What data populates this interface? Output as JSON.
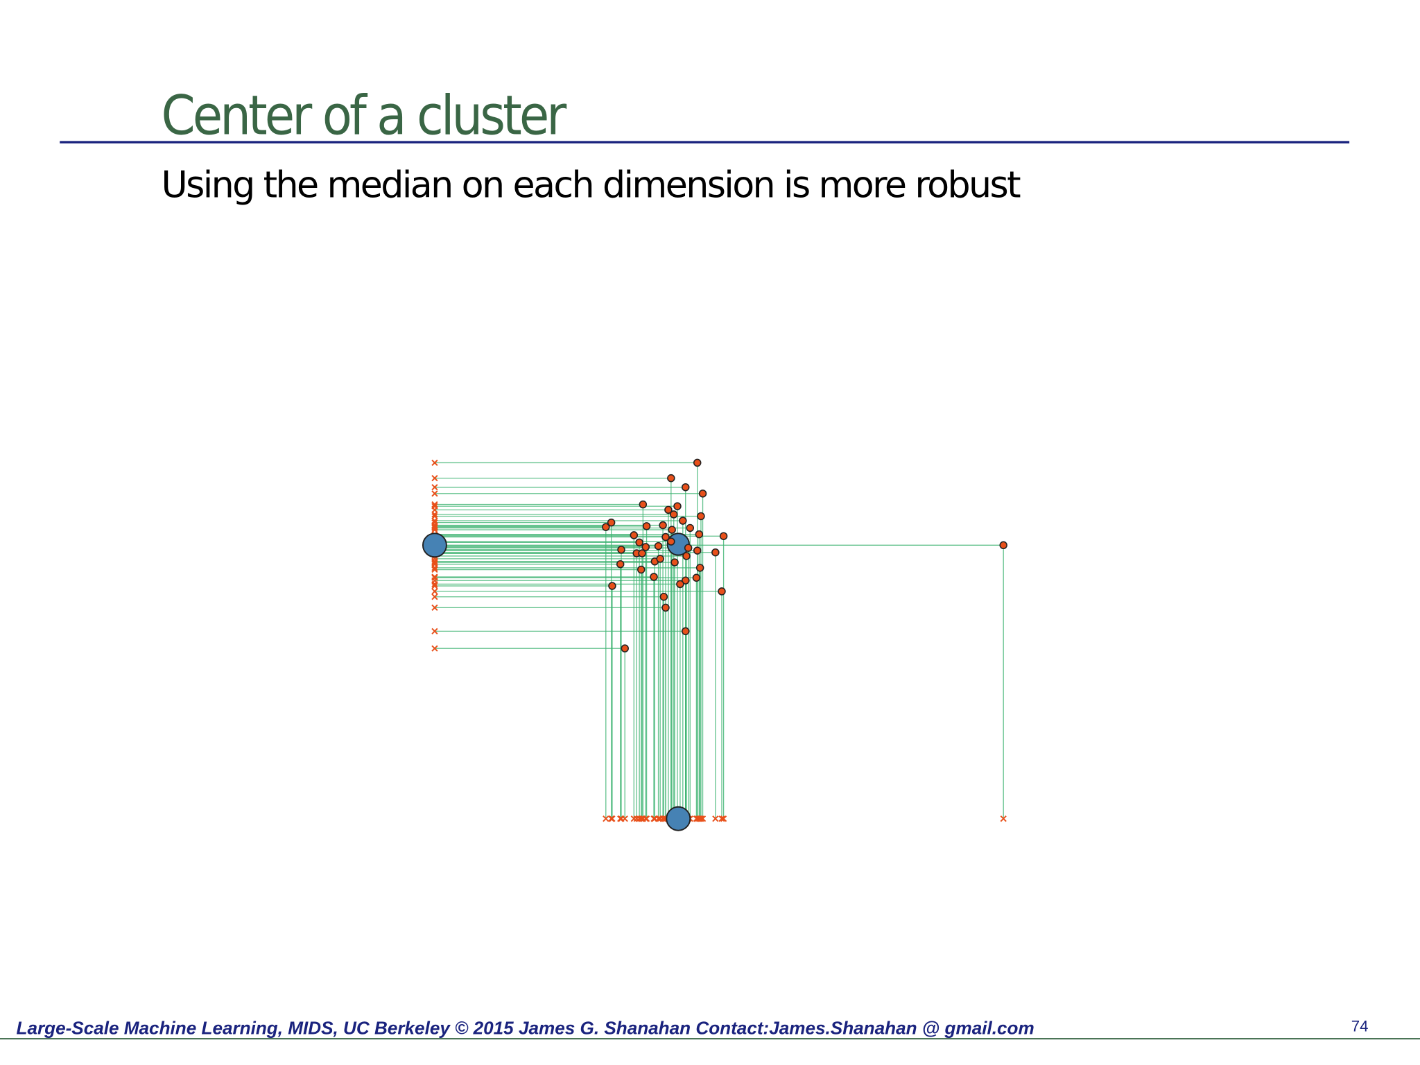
{
  "header": {
    "title": "Center of a cluster",
    "subtitle": "Using the median on each dimension is more robust"
  },
  "footer": {
    "text": "Large-Scale Machine Learning, MIDS, UC Berkeley ©  2015 James G. Shanahan   Contact:James.Shanahan @ gmail.com",
    "page": "74"
  }
}
